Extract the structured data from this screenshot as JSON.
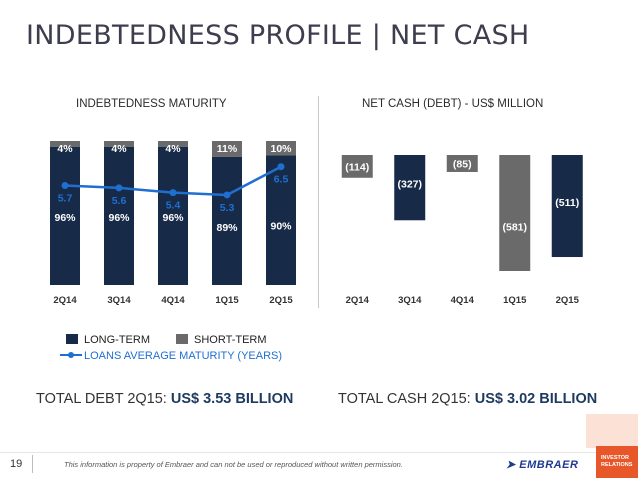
{
  "title": "INDEBTEDNESS PROFILE | NET CASH",
  "left_subtitle": "INDEBTEDNESS MATURITY",
  "right_subtitle": "NET CASH (DEBT) - US$ MILLION",
  "legend": {
    "long_term": "LONG-TERM",
    "short_term": "SHORT-TERM",
    "avg_maturity": "LOANS AVERAGE MATURITY (YEARS)"
  },
  "total_debt": {
    "label": "TOTAL DEBT 2Q15: ",
    "value": "US$ 3.53 BILLION"
  },
  "total_cash": {
    "label": "TOTAL CASH 2Q15: ",
    "value": "US$ 3.02 BILLION"
  },
  "footer": {
    "page_number": "19",
    "disclaimer": "This information is property of Embraer and can not be used or reproduced without written permission.",
    "logo_text": "EMBRAER",
    "badge_line1": "INVESTOR",
    "badge_line2": "RELATIONS"
  },
  "colors": {
    "long_term": "#172a48",
    "short_term": "#6a6a6a",
    "maturity_line": "#1f6fd1",
    "net_positive": "#172a48",
    "net_negative": "#6a6a6a"
  },
  "chart_data": [
    {
      "type": "bar",
      "categories": [
        "2Q14",
        "3Q14",
        "4Q14",
        "1Q15",
        "2Q15"
      ],
      "series": [
        {
          "name": "LONG-TERM",
          "values": [
            96,
            96,
            96,
            89,
            90
          ],
          "labels": [
            "96%",
            "96%",
            "96%",
            "89%",
            "90%"
          ]
        },
        {
          "name": "SHORT-TERM",
          "values": [
            4,
            4,
            4,
            11,
            10
          ],
          "labels": [
            "4%",
            "4%",
            "4%",
            "11%",
            "10%"
          ]
        },
        {
          "name": "LOANS AVERAGE MATURITY (YEARS)",
          "type": "line",
          "values": [
            5.7,
            5.6,
            5.4,
            5.3,
            6.5
          ],
          "labels": [
            "5.7",
            "5.6",
            "5.4",
            "5.3",
            "6.5"
          ]
        }
      ],
      "stacked": true,
      "ylim": [
        0,
        100
      ]
    },
    {
      "type": "bar",
      "categories": [
        "2Q14",
        "3Q14",
        "4Q14",
        "1Q15",
        "2Q15"
      ],
      "values": [
        -114,
        -327,
        -85,
        -581,
        -511
      ],
      "labels": [
        "(114)",
        "(327)",
        "(85)",
        "(581)",
        "(511)"
      ],
      "color_by_category": [
        "net_negative",
        "net_positive",
        "net_negative",
        "net_negative",
        "net_positive"
      ]
    }
  ]
}
